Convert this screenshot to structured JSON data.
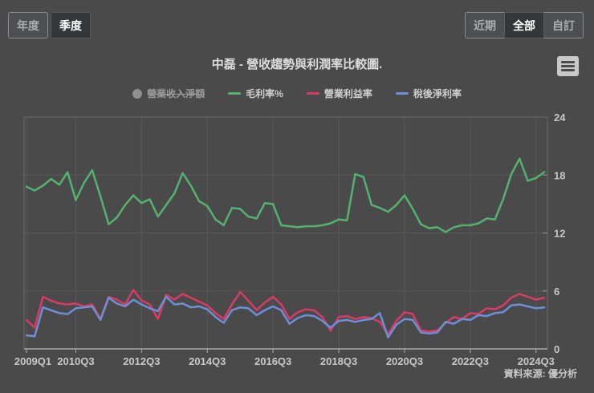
{
  "header": {
    "period_buttons": [
      {
        "label": "年度",
        "selected": false
      },
      {
        "label": "季度",
        "selected": true
      }
    ],
    "range_buttons": [
      {
        "label": "近期",
        "selected": false
      },
      {
        "label": "全部",
        "selected": true
      },
      {
        "label": "自訂",
        "selected": false
      }
    ]
  },
  "chart": {
    "title": "中磊 - 營收趨勢與利潤率比較圖.",
    "source": "資料來源: 優分析",
    "export_icon": "hamburger-menu-icon"
  },
  "legend": {
    "items": [
      {
        "label": "營業收入淨額",
        "color": "#8f8f8f",
        "marker": "circle",
        "hidden": true
      },
      {
        "label": "毛利率%",
        "color": "#55b26e",
        "marker": "line",
        "hidden": false
      },
      {
        "label": "營業利益率",
        "color": "#da3a63",
        "marker": "line",
        "hidden": false
      },
      {
        "label": "稅後淨利率",
        "color": "#6d8fd8",
        "marker": "line",
        "hidden": false
      }
    ]
  },
  "chart_data": {
    "type": "line",
    "title": "中磊 - 營收趨勢與利潤率比較圖.",
    "x_unit": "quarter",
    "x_start": "2009Q1",
    "x_end": "2024Q4",
    "x_tick_labels": [
      "2009Q1",
      "2010Q3",
      "2012Q3",
      "2014Q3",
      "2016Q3",
      "2018Q3",
      "2020Q3",
      "2022Q3",
      "2024Q3"
    ],
    "x_tick_indices": [
      0,
      6,
      14,
      22,
      30,
      38,
      46,
      54,
      62
    ],
    "ylim": [
      0,
      24
    ],
    "y_ticks": [
      0,
      6,
      12,
      18,
      24
    ],
    "grid": true,
    "legend_position": "top",
    "colors": {
      "background": "#4a4a4b",
      "gridline": "#585859",
      "plot_border": "#6a6a6b",
      "axis_line": "#a8a8a8",
      "label_text": "#c8c8c8"
    },
    "series": [
      {
        "name": "營業收入淨額",
        "color": "#8f8f8f",
        "visible": false,
        "values": []
      },
      {
        "name": "毛利率%",
        "color": "#55b26e",
        "visible": true,
        "values": [
          16.8,
          16.4,
          16.9,
          17.6,
          17.0,
          18.3,
          15.4,
          17.2,
          18.5,
          15.8,
          12.9,
          13.6,
          14.9,
          15.9,
          15.1,
          15.5,
          13.7,
          14.9,
          16.1,
          18.2,
          16.9,
          15.3,
          14.8,
          13.4,
          12.8,
          14.6,
          14.5,
          13.7,
          13.5,
          15.1,
          15.0,
          12.8,
          12.7,
          12.6,
          12.7,
          12.7,
          12.8,
          13.0,
          13.4,
          13.3,
          18.1,
          17.8,
          14.9,
          14.6,
          14.2,
          14.9,
          15.9,
          14.5,
          12.9,
          12.5,
          12.6,
          12.1,
          12.6,
          12.8,
          12.8,
          13.0,
          13.5,
          13.4,
          15.5,
          18.1,
          19.7,
          17.4,
          17.7,
          18.3
        ]
      },
      {
        "name": "營業利益率",
        "color": "#da3a63",
        "visible": true,
        "values": [
          3.0,
          2.2,
          5.4,
          5.0,
          4.7,
          4.6,
          4.7,
          4.4,
          4.6,
          3.1,
          5.4,
          5.1,
          4.6,
          6.1,
          5.0,
          4.6,
          3.1,
          5.6,
          5.1,
          5.7,
          5.3,
          4.9,
          4.5,
          3.7,
          3.1,
          4.6,
          5.9,
          5.0,
          4.0,
          4.8,
          5.4,
          4.6,
          3.1,
          3.8,
          4.1,
          4.0,
          3.3,
          1.9,
          3.3,
          3.4,
          3.1,
          3.3,
          3.2,
          2.8,
          1.5,
          2.9,
          3.8,
          3.6,
          1.9,
          1.8,
          1.9,
          2.7,
          3.3,
          3.1,
          3.7,
          3.6,
          4.2,
          4.1,
          4.5,
          5.3,
          5.7,
          5.4,
          5.1,
          5.3
        ]
      },
      {
        "name": "稅後淨利率",
        "color": "#6d8fd8",
        "visible": true,
        "values": [
          1.4,
          1.3,
          4.3,
          4.0,
          3.7,
          3.6,
          4.2,
          4.3,
          4.4,
          3.0,
          5.3,
          4.7,
          4.4,
          5.1,
          4.6,
          4.2,
          3.9,
          5.4,
          4.6,
          4.7,
          4.3,
          4.4,
          4.1,
          3.3,
          2.7,
          4.0,
          4.3,
          4.2,
          3.5,
          4.0,
          4.4,
          4.0,
          2.6,
          3.2,
          3.5,
          3.4,
          2.9,
          2.2,
          2.9,
          3.0,
          2.8,
          3.0,
          3.1,
          3.7,
          1.2,
          2.5,
          3.1,
          3.0,
          1.7,
          1.6,
          1.7,
          2.8,
          2.6,
          3.1,
          3.0,
          3.5,
          3.4,
          3.7,
          3.8,
          4.5,
          4.6,
          4.4,
          4.2,
          4.3
        ]
      }
    ]
  }
}
